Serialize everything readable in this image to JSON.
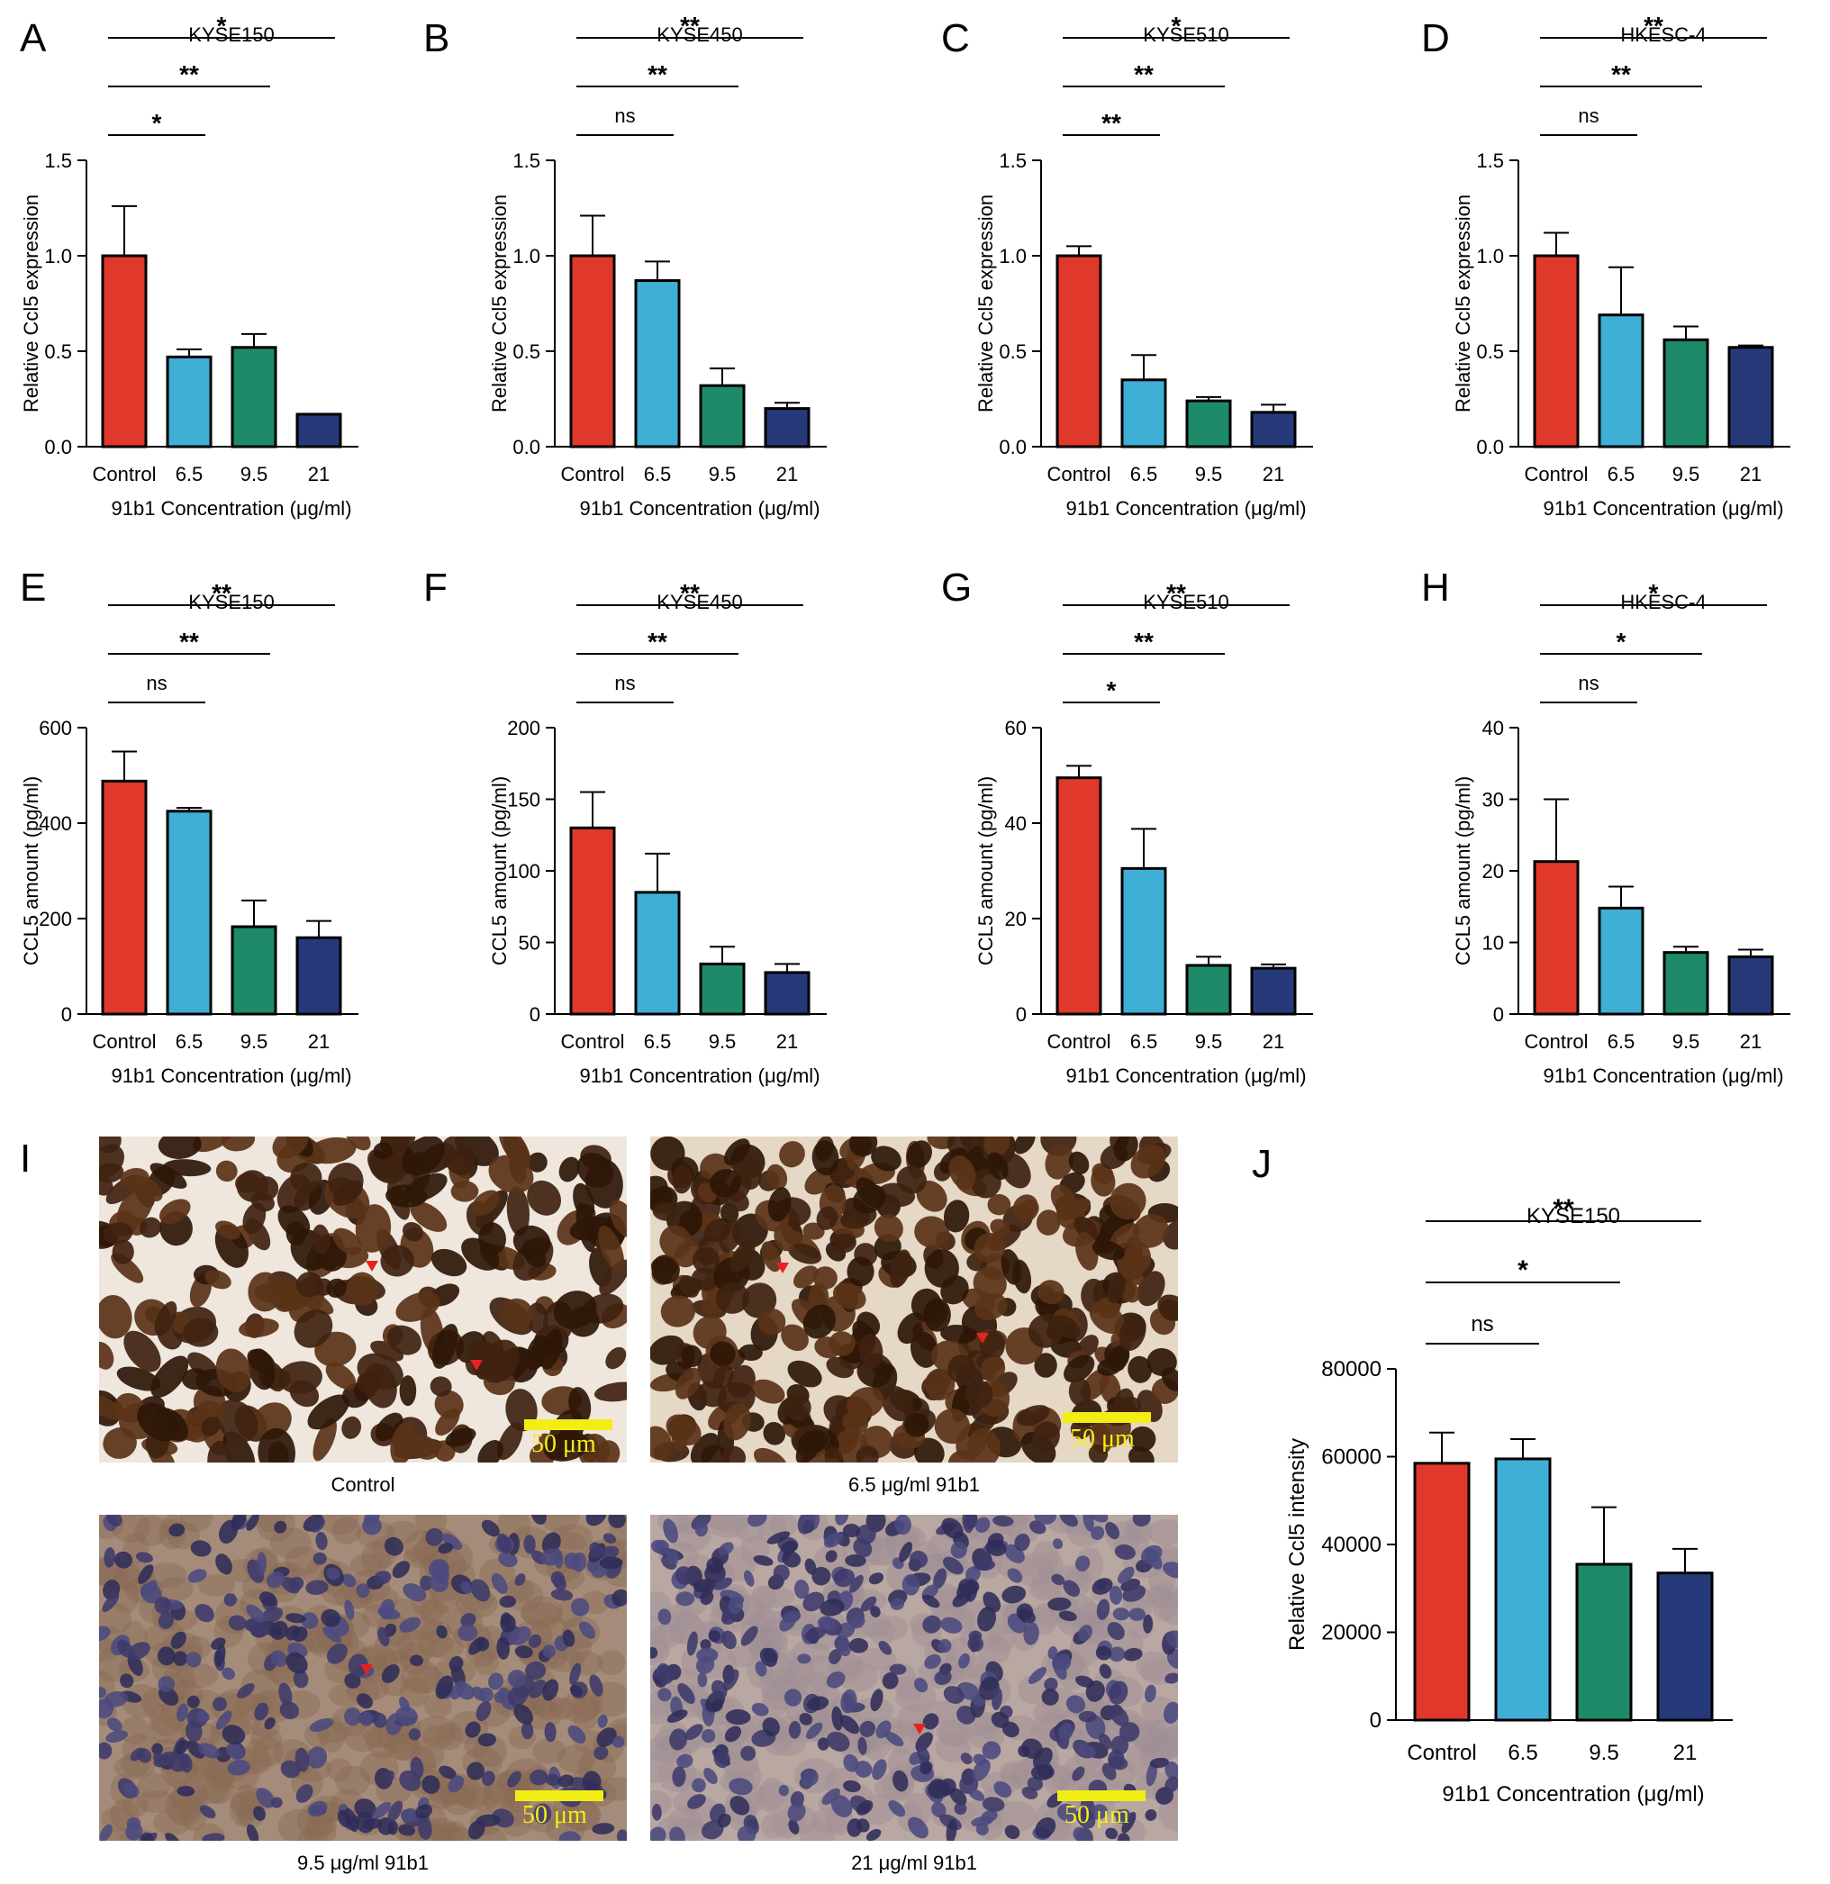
{
  "colors": {
    "control": "#e0392b",
    "c6_5": "#40afd6",
    "c9_5": "#1e8a6a",
    "c21": "#263a7a",
    "scale": "#f2ee14",
    "marker": "#e8211f"
  },
  "panels": {
    "A": "A",
    "B": "B",
    "C": "C",
    "D": "D",
    "E": "E",
    "F": "F",
    "G": "G",
    "H": "H",
    "I": "I",
    "J": "J"
  },
  "chart_data": [
    {
      "id": "A",
      "type": "bar",
      "title": "KYSE150",
      "categories": [
        "Control",
        "6.5",
        "9.5",
        "21"
      ],
      "values": [
        1.0,
        0.47,
        0.52,
        0.17
      ],
      "errors": [
        0.26,
        0.04,
        0.07,
        0.0
      ],
      "ylim": [
        0,
        1.5
      ],
      "yticks": [
        0.0,
        0.5,
        1.0,
        1.5
      ],
      "yticklabels": [
        "0.0",
        "0.5",
        "1.0",
        "1.5"
      ],
      "ylabel": "Relative Ccl5 expression",
      "xlabel": "91b1 Concentration (μg/ml)",
      "significance": [
        {
          "from": 0,
          "to": 1,
          "label": "*"
        },
        {
          "from": 0,
          "to": 2,
          "label": "**"
        },
        {
          "from": 0,
          "to": 3,
          "label": "*"
        }
      ]
    },
    {
      "id": "B",
      "type": "bar",
      "title": "KYSE450",
      "categories": [
        "Control",
        "6.5",
        "9.5",
        "21"
      ],
      "values": [
        1.0,
        0.87,
        0.32,
        0.2
      ],
      "errors": [
        0.21,
        0.1,
        0.09,
        0.03
      ],
      "ylim": [
        0,
        1.5
      ],
      "yticks": [
        0.0,
        0.5,
        1.0,
        1.5
      ],
      "yticklabels": [
        "0.0",
        "0.5",
        "1.0",
        "1.5"
      ],
      "ylabel": "Relative Ccl5 expression",
      "xlabel": "91b1 Concentration (μg/ml)",
      "significance": [
        {
          "from": 0,
          "to": 1,
          "label": "ns"
        },
        {
          "from": 0,
          "to": 2,
          "label": "**"
        },
        {
          "from": 0,
          "to": 3,
          "label": "**"
        }
      ]
    },
    {
      "id": "C",
      "type": "bar",
      "title": "KYSE510",
      "categories": [
        "Control",
        "6.5",
        "9.5",
        "21"
      ],
      "values": [
        1.0,
        0.35,
        0.24,
        0.18
      ],
      "errors": [
        0.05,
        0.13,
        0.02,
        0.04
      ],
      "ylim": [
        0,
        1.5
      ],
      "yticks": [
        0.0,
        0.5,
        1.0,
        1.5
      ],
      "yticklabels": [
        "0.0",
        "0.5",
        "1.0",
        "1.5"
      ],
      "ylabel": "Relative Ccl5 expression",
      "xlabel": "91b1 Concentration (μg/ml)",
      "significance": [
        {
          "from": 0,
          "to": 1,
          "label": "**"
        },
        {
          "from": 0,
          "to": 2,
          "label": "**"
        },
        {
          "from": 0,
          "to": 3,
          "label": "*"
        }
      ]
    },
    {
      "id": "D",
      "type": "bar",
      "title": "HKESC-4",
      "categories": [
        "Control",
        "6.5",
        "9.5",
        "21"
      ],
      "values": [
        1.0,
        0.69,
        0.56,
        0.52
      ],
      "errors": [
        0.12,
        0.25,
        0.07,
        0.01
      ],
      "ylim": [
        0,
        1.5
      ],
      "yticks": [
        0.0,
        0.5,
        1.0,
        1.5
      ],
      "yticklabels": [
        "0.0",
        "0.5",
        "1.0",
        "1.5"
      ],
      "ylabel": "Relative Ccl5 expression",
      "xlabel": "91b1 Concentration (μg/ml)",
      "significance": [
        {
          "from": 0,
          "to": 1,
          "label": "ns"
        },
        {
          "from": 0,
          "to": 2,
          "label": "**"
        },
        {
          "from": 0,
          "to": 3,
          "label": "**"
        }
      ]
    },
    {
      "id": "E",
      "type": "bar",
      "title": "KYSE150",
      "categories": [
        "Control",
        "6.5",
        "9.5",
        "21"
      ],
      "values": [
        488,
        425,
        183,
        160
      ],
      "errors": [
        62,
        7,
        55,
        35
      ],
      "ylim": [
        0,
        600
      ],
      "yticks": [
        0,
        200,
        400,
        600
      ],
      "yticklabels": [
        "0",
        "200",
        "400",
        "600"
      ],
      "ylabel": "CCL5 amount (pg/ml)",
      "xlabel": "91b1 Concentration (μg/ml)",
      "significance": [
        {
          "from": 0,
          "to": 1,
          "label": "ns"
        },
        {
          "from": 0,
          "to": 2,
          "label": "**"
        },
        {
          "from": 0,
          "to": 3,
          "label": "**"
        }
      ]
    },
    {
      "id": "F",
      "type": "bar",
      "title": "KYSE450",
      "categories": [
        "Control",
        "6.5",
        "9.5",
        "21"
      ],
      "values": [
        130,
        85,
        35,
        29
      ],
      "errors": [
        25,
        27,
        12,
        6
      ],
      "ylim": [
        0,
        200
      ],
      "yticks": [
        0,
        50,
        100,
        150,
        200
      ],
      "yticklabels": [
        "0",
        "50",
        "100",
        "150",
        "200"
      ],
      "ylabel": "CCL5 amount (pg/ml)",
      "xlabel": "91b1 Concentration (μg/ml)",
      "significance": [
        {
          "from": 0,
          "to": 1,
          "label": "ns"
        },
        {
          "from": 0,
          "to": 2,
          "label": "**"
        },
        {
          "from": 0,
          "to": 3,
          "label": "**"
        }
      ]
    },
    {
      "id": "G",
      "type": "bar",
      "title": "KYSE510",
      "categories": [
        "Control",
        "6.5",
        "9.5",
        "21"
      ],
      "values": [
        49.5,
        30.5,
        10.2,
        9.6
      ],
      "errors": [
        2.5,
        8.3,
        1.8,
        0.8
      ],
      "ylim": [
        0,
        60
      ],
      "yticks": [
        0,
        20,
        40,
        60
      ],
      "yticklabels": [
        "0",
        "20",
        "40",
        "60"
      ],
      "ylabel": "CCL5 amount (pg/ml)",
      "xlabel": "91b1 Concentration (μg/ml)",
      "significance": [
        {
          "from": 0,
          "to": 1,
          "label": "*"
        },
        {
          "from": 0,
          "to": 2,
          "label": "**"
        },
        {
          "from": 0,
          "to": 3,
          "label": "**"
        }
      ]
    },
    {
      "id": "H",
      "type": "bar",
      "title": "HKESC-4",
      "categories": [
        "Control",
        "6.5",
        "9.5",
        "21"
      ],
      "values": [
        21.3,
        14.8,
        8.6,
        8.0
      ],
      "errors": [
        8.7,
        3.0,
        0.8,
        1.0
      ],
      "ylim": [
        0,
        40
      ],
      "yticks": [
        0,
        10,
        20,
        30,
        40
      ],
      "yticklabels": [
        "0",
        "10",
        "20",
        "30",
        "40"
      ],
      "ylabel": "CCL5 amount (pg/ml)",
      "xlabel": "91b1 Concentration (μg/ml)",
      "significance": [
        {
          "from": 0,
          "to": 1,
          "label": "ns"
        },
        {
          "from": 0,
          "to": 2,
          "label": "*"
        },
        {
          "from": 0,
          "to": 3,
          "label": "*"
        }
      ]
    },
    {
      "id": "J",
      "type": "bar",
      "title": "KYSE150",
      "categories": [
        "Control",
        "6.5",
        "9.5",
        "21"
      ],
      "values": [
        58500,
        59500,
        35500,
        33500
      ],
      "errors": [
        7000,
        4500,
        13000,
        5500
      ],
      "ylim": [
        0,
        80000
      ],
      "yticks": [
        0,
        20000,
        40000,
        60000,
        80000
      ],
      "yticklabels": [
        "0",
        "20000",
        "40000",
        "60000",
        "80000"
      ],
      "ylabel": "Relative Ccl5 intensity",
      "xlabel": "91b1 Concentration (μg/ml)",
      "significance": [
        {
          "from": 0,
          "to": 1,
          "label": "ns"
        },
        {
          "from": 0,
          "to": 2,
          "label": "*"
        },
        {
          "from": 0,
          "to": 3,
          "label": "**"
        }
      ]
    }
  ],
  "micrographs": [
    {
      "label": "Control",
      "scale": "50 μm",
      "stain": "dark"
    },
    {
      "label": "6.5 μg/ml 91b1",
      "scale": "50 μm",
      "stain": "dark"
    },
    {
      "label": "9.5 μg/ml 91b1",
      "scale": "50 μm",
      "stain": "light"
    },
    {
      "label": "21 μg/ml 91b1",
      "scale": "50 μm",
      "stain": "light"
    }
  ]
}
